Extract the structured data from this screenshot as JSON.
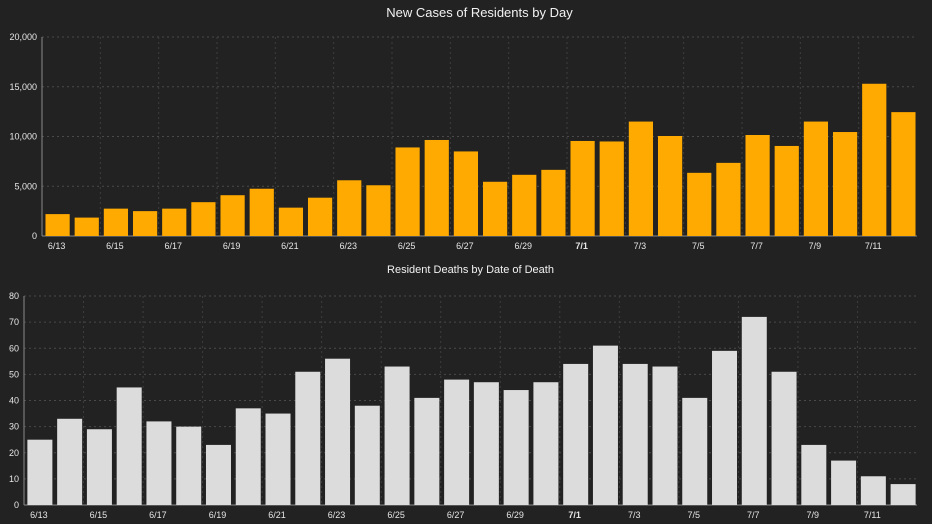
{
  "chart_data": [
    {
      "type": "bar",
      "title": "New Cases of Residents by Day",
      "xlabel": "",
      "ylabel": "",
      "ylim": [
        0,
        20000
      ],
      "yticks": [
        "0",
        "5,000",
        "10,000",
        "15,000",
        "20,000"
      ],
      "ytick_values": [
        0,
        5000,
        10000,
        15000,
        20000
      ],
      "grid": true,
      "bar_color": "#FFAA00",
      "categories": [
        "6/13",
        "6/14",
        "6/15",
        "6/16",
        "6/17",
        "6/18",
        "6/19",
        "6/20",
        "6/21",
        "6/22",
        "6/23",
        "6/24",
        "6/25",
        "6/26",
        "6/27",
        "6/28",
        "6/29",
        "6/30",
        "7/1",
        "7/2",
        "7/3",
        "7/4",
        "7/5",
        "7/6",
        "7/7",
        "7/8",
        "7/9",
        "7/10",
        "7/11",
        "7/12"
      ],
      "values": [
        2200,
        1850,
        2750,
        2500,
        2750,
        3400,
        4100,
        4750,
        2850,
        3850,
        5600,
        5100,
        8900,
        9650,
        8500,
        5450,
        6150,
        6650,
        9550,
        9500,
        11500,
        10050,
        6350,
        7350,
        10150,
        9050,
        11500,
        10450,
        15300,
        12450
      ],
      "x_tick_labels": [
        "6/13",
        "6/15",
        "6/17",
        "6/19",
        "6/21",
        "6/23",
        "6/25",
        "6/27",
        "6/29",
        "7/1",
        "7/3",
        "7/5",
        "7/7",
        "7/9",
        "7/11"
      ]
    },
    {
      "type": "bar",
      "title": "Resident Deaths by Date of Death",
      "xlabel": "",
      "ylabel": "",
      "ylim": [
        0,
        80
      ],
      "yticks": [
        "0",
        "10",
        "20",
        "30",
        "40",
        "50",
        "60",
        "70",
        "80"
      ],
      "ytick_values": [
        0,
        10,
        20,
        30,
        40,
        50,
        60,
        70,
        80
      ],
      "grid": true,
      "bar_color": "#DCDCDC",
      "categories": [
        "6/13",
        "6/14",
        "6/15",
        "6/16",
        "6/17",
        "6/18",
        "6/19",
        "6/20",
        "6/21",
        "6/22",
        "6/23",
        "6/24",
        "6/25",
        "6/26",
        "6/27",
        "6/28",
        "6/29",
        "6/30",
        "7/1",
        "7/2",
        "7/3",
        "7/4",
        "7/5",
        "7/6",
        "7/7",
        "7/8",
        "7/9",
        "7/10",
        "7/11",
        "7/12"
      ],
      "values": [
        25,
        33,
        29,
        45,
        32,
        30,
        23,
        37,
        35,
        51,
        56,
        38,
        53,
        41,
        48,
        47,
        44,
        47,
        54,
        61,
        54,
        53,
        41,
        59,
        72,
        51,
        23,
        17,
        11,
        8
      ],
      "x_tick_labels": [
        "6/13",
        "6/15",
        "6/17",
        "6/19",
        "6/21",
        "6/23",
        "6/25",
        "6/27",
        "6/29",
        "7/1",
        "7/3",
        "7/5",
        "7/7",
        "7/9",
        "7/11"
      ]
    }
  ]
}
